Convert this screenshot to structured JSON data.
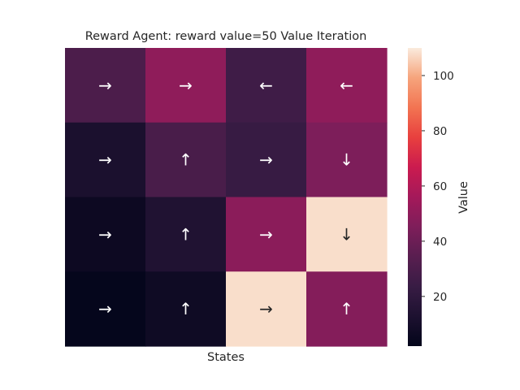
{
  "chart_data": {
    "type": "heatmap",
    "title": "Reward Agent: reward value=50 Value Iteration",
    "xlabel": "States",
    "ylabel": "",
    "colorbar_label": "Value",
    "colorbar_ticks": [
      20,
      40,
      60,
      80,
      100
    ],
    "vmin": 2,
    "vmax": 110,
    "colormap": "rocket",
    "rows": 4,
    "cols": 4,
    "values": [
      [
        30,
        50,
        26,
        50
      ],
      [
        12,
        29,
        23,
        45
      ],
      [
        6,
        14,
        49,
        108
      ],
      [
        3,
        7,
        108,
        47
      ]
    ],
    "policy": [
      [
        "→",
        "→",
        "←",
        "←"
      ],
      [
        "→",
        "↑",
        "→",
        "↓"
      ],
      [
        "→",
        "↑",
        "→",
        "↓"
      ],
      [
        "→",
        "↑",
        "→",
        "↑"
      ]
    ]
  }
}
